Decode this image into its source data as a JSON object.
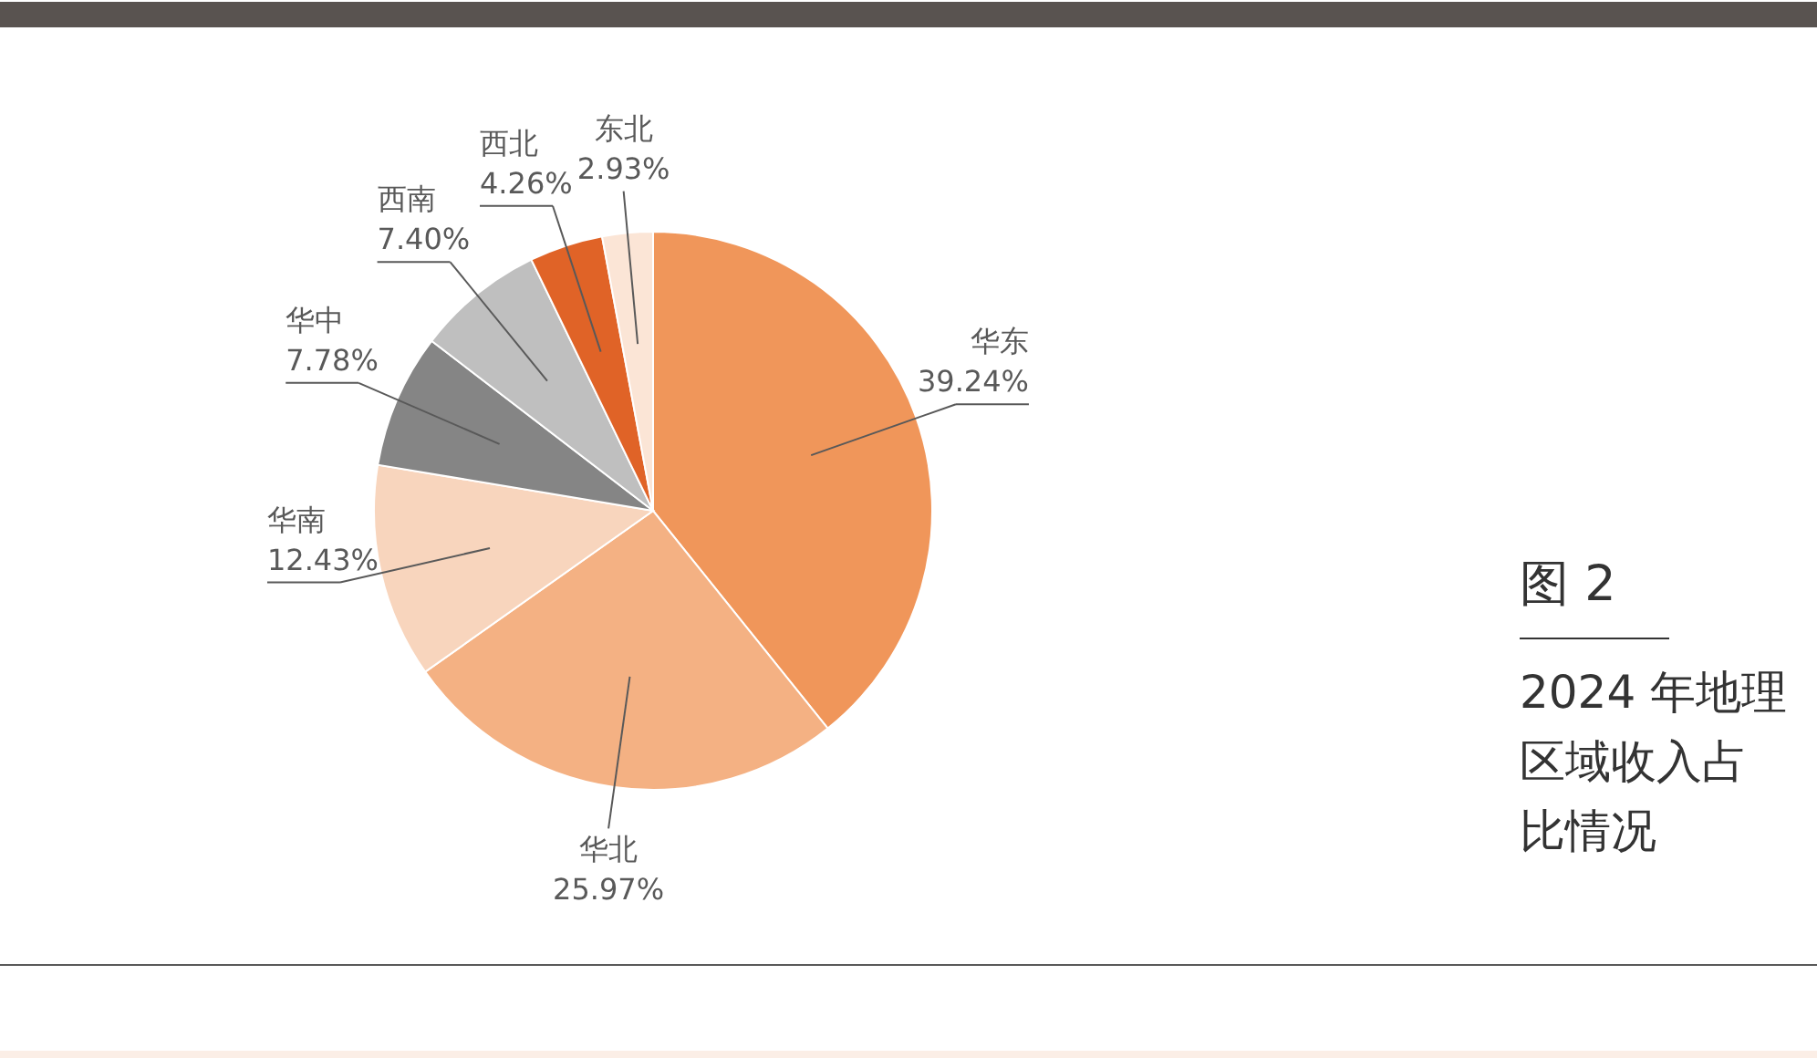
{
  "chart_data": {
    "type": "pie",
    "title": "图 2",
    "subtitle": "2024 年地理区域收入占比情况",
    "categories": [
      "华东",
      "华北",
      "华南",
      "华中",
      "西南",
      "西北",
      "东北"
    ],
    "values": [
      39.24,
      25.97,
      12.43,
      7.78,
      7.4,
      4.26,
      2.93
    ],
    "colors": [
      "#f0965a",
      "#f4b183",
      "#f8d5bd",
      "#858585",
      "#bfbfbf",
      "#e06327",
      "#fbe5d6"
    ],
    "value_labels": [
      "39.24%",
      "25.97%",
      "12.43%",
      "7.78%",
      "7.40%",
      "4.26%",
      "2.93%"
    ]
  }
}
